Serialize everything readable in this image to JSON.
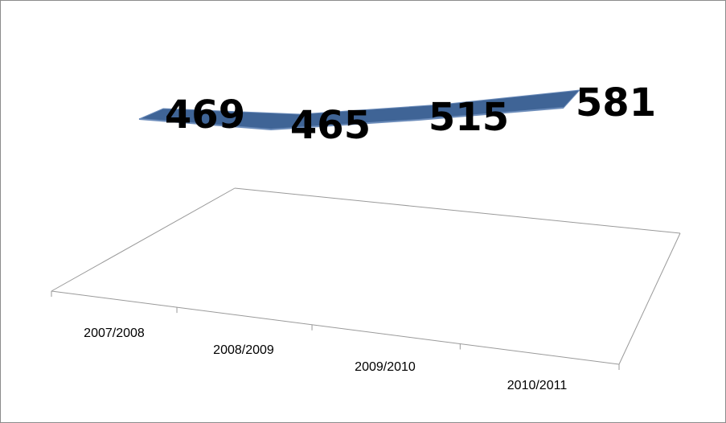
{
  "chart_data": {
    "type": "line",
    "style": "3d-ribbon",
    "categories": [
      "2007/2008",
      "2008/2009",
      "2009/2010",
      "2010/2011"
    ],
    "values": [
      469,
      465,
      515,
      581
    ],
    "title": "",
    "xlabel": "",
    "ylabel": "",
    "data_labels": true,
    "grid": false,
    "legend": "none",
    "colors": {
      "ribbon_top": "#3F6496",
      "ribbon_edge": "#6C8CBA",
      "floor_line": "#9A9A9A",
      "frame": "#8C8C8C"
    }
  }
}
